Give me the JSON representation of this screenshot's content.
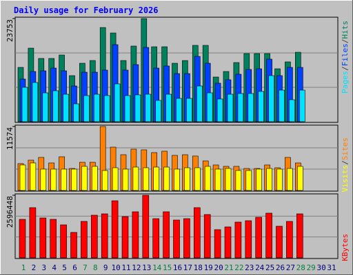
{
  "chart_data": [
    {
      "type": "bar",
      "title": "Daily usage for February 2026",
      "categories": [
        "1",
        "2",
        "3",
        "4",
        "5",
        "6",
        "7",
        "8",
        "9",
        "10",
        "11",
        "12",
        "13",
        "14",
        "15",
        "16",
        "17",
        "18",
        "19",
        "20",
        "21",
        "22",
        "23",
        "24",
        "25",
        "26",
        "27",
        "28",
        "29",
        "30",
        "31"
      ],
      "category_colors": [
        "#008040",
        "#000080",
        "#000080",
        "#000080",
        "#000080",
        "#000080",
        "#008040",
        "#008040",
        "#000080",
        "#000080",
        "#000080",
        "#000080",
        "#000080",
        "#008040",
        "#008040",
        "#000080",
        "#000080",
        "#000080",
        "#000080",
        "#000080",
        "#008040",
        "#008040",
        "#000080",
        "#000080",
        "#000080",
        "#000080",
        "#000080",
        "#008040",
        "#008040",
        "#000080",
        "#000080"
      ],
      "legend_separator": "/",
      "ylim": [
        0,
        23753
      ],
      "yticks": [
        23753
      ],
      "series": [
        {
          "name": "Hits",
          "color": "#00805c",
          "values": [
            12510,
            16940,
            14570,
            14570,
            15360,
            10610,
            13460,
            14090,
            21690,
            20430,
            14090,
            17420,
            23753,
            17260,
            17260,
            13460,
            14090,
            17580,
            17580,
            10290,
            11560,
            13620,
            15680,
            15680,
            15680,
            12190,
            13780,
            15990,
            null,
            null,
            null
          ]
        },
        {
          "name": "Files",
          "color": "#0040ff",
          "values": [
            9820,
            11560,
            11720,
            12350,
            11720,
            8230,
            11400,
            11400,
            11880,
            17740,
            11880,
            13140,
            17100,
            12350,
            12830,
            11080,
            11080,
            15040,
            13460,
            8870,
            9660,
            10930,
            12030,
            12190,
            14410,
            10610,
            12510,
            12510,
            null,
            null,
            null
          ]
        },
        {
          "name": "Pages",
          "color": "#00e0ff",
          "values": [
            7920,
            9030,
            6650,
            7130,
            6330,
            4120,
            6020,
            6330,
            6020,
            8710,
            6020,
            6180,
            6330,
            4910,
            6330,
            5380,
            5380,
            8230,
            6650,
            5230,
            6330,
            6490,
            6490,
            6970,
            10610,
            7280,
            5070,
            7280,
            null,
            null,
            null
          ]
        }
      ]
    },
    {
      "type": "bar",
      "ylim": [
        0,
        11574
      ],
      "yticks": [
        11574
      ],
      "series": [
        {
          "name": "Sites",
          "color": "#ff8000",
          "values": [
            4860,
            5480,
            5980,
            4980,
            6100,
            3980,
            5100,
            5100,
            11574,
            7840,
            6470,
            7470,
            7350,
            6850,
            7100,
            6350,
            6470,
            6230,
            5350,
            4610,
            4360,
            4360,
            3980,
            3980,
            4610,
            4110,
            5980,
            4980,
            null,
            null,
            null
          ]
        },
        {
          "name": "Visits",
          "color": "#ffff00",
          "values": [
            4610,
            4980,
            3860,
            3860,
            3860,
            3860,
            4360,
            4360,
            3610,
            4110,
            3860,
            4230,
            4110,
            4230,
            4230,
            3860,
            4110,
            4110,
            4360,
            3860,
            3980,
            3610,
            3610,
            3860,
            3980,
            3860,
            3980,
            4360,
            null,
            null,
            null
          ]
        }
      ]
    },
    {
      "type": "bar",
      "ylim": [
        0,
        2596448
      ],
      "yticks": [
        2596448
      ],
      "series": [
        {
          "name": "KBytes",
          "color": "#ff0000",
          "values": [
            1597800,
            2082800,
            1654900,
            1597800,
            1369500,
            1055700,
            1512200,
            1769000,
            1826000,
            2368200,
            1711900,
            1911600,
            2596448,
            1626300,
            1911600,
            1569300,
            1626300,
            2082800,
            1797500,
            1169800,
            1283900,
            1483700,
            1540700,
            1683400,
            1854600,
            1312500,
            1512200,
            1826000,
            null,
            null,
            null
          ]
        }
      ]
    }
  ]
}
